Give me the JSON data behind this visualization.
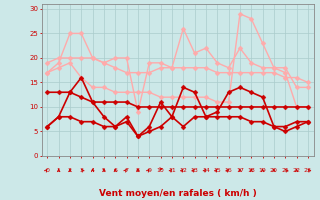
{
  "bg_color": "#cce8e8",
  "grid_color": "#aacccc",
  "xlabel": "Vent moyen/en rafales ( km/h )",
  "xlabel_color": "#cc0000",
  "xlabel_fontsize": 6.5,
  "tick_color": "#cc0000",
  "spine_color": "#888888",
  "xlim": [
    -0.5,
    23.5
  ],
  "ylim": [
    0,
    31
  ],
  "x_ticks": [
    0,
    1,
    2,
    3,
    4,
    5,
    6,
    7,
    8,
    9,
    10,
    11,
    12,
    13,
    14,
    15,
    16,
    17,
    18,
    19,
    20,
    21,
    22,
    23
  ],
  "y_ticks": [
    0,
    5,
    10,
    15,
    20,
    25,
    30
  ],
  "lines": [
    {
      "color": "#ffaaaa",
      "lw": 1.0,
      "ms": 2.5,
      "y": [
        17,
        19,
        25,
        25,
        20,
        19,
        20,
        20,
        9,
        19,
        19,
        18,
        26,
        21,
        22,
        19,
        18,
        22,
        19,
        18,
        18,
        18,
        14,
        14
      ]
    },
    {
      "color": "#ffaaaa",
      "lw": 1.0,
      "ms": 2.5,
      "y": [
        19,
        20,
        20,
        20,
        20,
        19,
        18,
        17,
        17,
        17,
        18,
        18,
        18,
        18,
        18,
        17,
        17,
        17,
        17,
        17,
        17,
        16,
        16,
        15
      ]
    },
    {
      "color": "#ffaaaa",
      "lw": 1.0,
      "ms": 2.5,
      "y": [
        17,
        18,
        19,
        16,
        14,
        14,
        13,
        13,
        13,
        13,
        12,
        12,
        12,
        12,
        12,
        11,
        11,
        29,
        28,
        23,
        18,
        17,
        10,
        10
      ]
    },
    {
      "color": "#cc0000",
      "lw": 1.2,
      "ms": 2.5,
      "y": [
        6,
        8,
        13,
        16,
        11,
        8,
        6,
        8,
        4,
        6,
        11,
        8,
        14,
        13,
        8,
        9,
        13,
        14,
        13,
        12,
        6,
        6,
        7,
        7
      ]
    },
    {
      "color": "#cc0000",
      "lw": 1.2,
      "ms": 2.5,
      "y": [
        13,
        13,
        13,
        12,
        11,
        11,
        11,
        11,
        10,
        10,
        10,
        10,
        10,
        10,
        10,
        10,
        10,
        10,
        10,
        10,
        10,
        10,
        10,
        10
      ]
    },
    {
      "color": "#cc0000",
      "lw": 1.2,
      "ms": 2.5,
      "y": [
        6,
        8,
        8,
        7,
        7,
        6,
        6,
        7,
        4,
        5,
        6,
        8,
        6,
        8,
        8,
        8,
        8,
        8,
        7,
        7,
        6,
        5,
        6,
        7
      ]
    }
  ],
  "wind_angles": [
    45,
    0,
    0,
    315,
    0,
    0,
    0,
    45,
    0,
    45,
    90,
    45,
    45,
    45,
    45,
    45,
    45,
    0,
    0,
    0,
    0,
    315,
    0,
    315
  ]
}
